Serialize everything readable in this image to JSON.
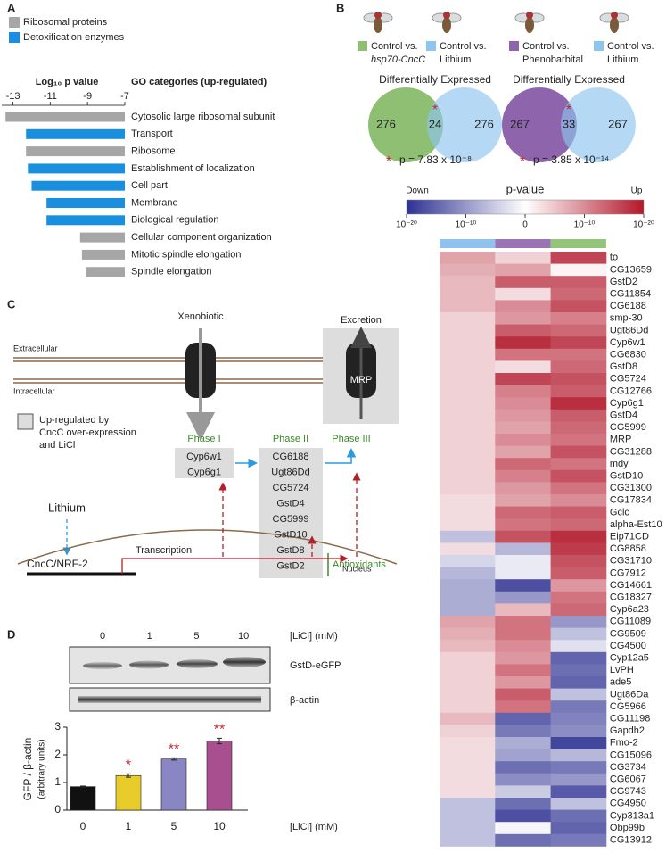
{
  "panel_labels": [
    "A",
    "B",
    "C",
    "D"
  ],
  "chart_data": [
    {
      "type": "hbar",
      "axis_title": "Log₁₀ p value",
      "category_title": "GO categories (up-regulated)",
      "categories": [
        "Cytosolic large ribosomal subunit",
        "Transport",
        "Ribosome",
        "Establishment of localization",
        "Cell part",
        "Membrane",
        "Biological regulation",
        "Cellular component organization",
        "Mitotic spindle elongation",
        "Spindle elongation"
      ],
      "series": [
        {
          "name": "Ribosomal proteins",
          "color": "#a6a6a6",
          "values": [
            -13.4,
            null,
            -12.3,
            null,
            null,
            null,
            null,
            -9.4,
            -9.3,
            -9.1
          ]
        },
        {
          "name": "Detoxification enzymes",
          "color": "#1a8fe0",
          "values": [
            null,
            -12.3,
            null,
            -12.2,
            -12.0,
            -11.2,
            -11.2,
            null,
            null,
            null
          ]
        }
      ],
      "xlim": [
        -13.6,
        -7
      ],
      "xticks": [
        -13,
        -11,
        -9,
        -7
      ]
    },
    {
      "type": "heatmap",
      "title": "p-value",
      "low_label": "Down",
      "high_label": "Up",
      "low_color": "#2e3192",
      "mid_color": "#ffffff",
      "high_color": "#b2182b",
      "column_colors": [
        "#8fc3ee",
        "#9b74b5",
        "#94c47a"
      ],
      "clim": [
        -20,
        20
      ],
      "cticks": [
        {
          "value": -20,
          "label": "10⁻²⁰"
        },
        {
          "value": -10,
          "label": "10⁻¹⁰"
        },
        0,
        {
          "value": 10,
          "label": "10⁻¹⁰"
        },
        {
          "value": 20,
          "label": "10⁻²⁰"
        }
      ],
      "rows": [
        "to",
        "CG13659",
        "GstD2",
        "CG11854",
        "CG6188",
        "smp-30",
        "Ugt86Dd",
        "Cyp6w1",
        "CG6830",
        "GstD8",
        "CG5724",
        "CG12766",
        "Cyp6g1",
        "GstD4",
        "CG5999",
        "MRP",
        "CG31288",
        "mdy",
        "GstD10",
        "CG31300",
        "CG17834",
        "Gclc",
        "alpha-Est10",
        "Eip71CD",
        "CG8858",
        "CG31710",
        "CG7912",
        "CG14661",
        "CG18327",
        "Cyp6a23",
        "CG11089",
        "CG9509",
        "CG4500",
        "Cyp12a5",
        "LvPH",
        "ade5",
        "Ugt86Da",
        "CG5966",
        "CG11198",
        "Gapdh2",
        "Fmo-2",
        "CG15096",
        "CG3734",
        "CG6067",
        "CG9743",
        "CG4950",
        "Cyp313a1",
        "Obp99b",
        "CG13912"
      ],
      "values": [
        [
          8,
          4,
          16
        ],
        [
          7,
          8,
          1
        ],
        [
          6,
          14,
          14
        ],
        [
          6,
          3,
          13
        ],
        [
          6,
          10,
          15
        ],
        [
          4,
          9,
          11
        ],
        [
          4,
          14,
          13
        ],
        [
          4,
          18,
          16
        ],
        [
          4,
          12,
          12
        ],
        [
          4,
          3,
          13
        ],
        [
          4,
          16,
          15
        ],
        [
          4,
          11,
          14
        ],
        [
          4,
          10,
          18
        ],
        [
          4,
          9,
          14
        ],
        [
          4,
          8,
          13
        ],
        [
          4,
          10,
          12
        ],
        [
          4,
          8,
          15
        ],
        [
          4,
          13,
          12
        ],
        [
          4,
          11,
          15
        ],
        [
          4,
          9,
          12
        ],
        [
          3,
          8,
          10
        ],
        [
          3,
          13,
          14
        ],
        [
          3,
          12,
          13
        ],
        [
          -6,
          15,
          18
        ],
        [
          3,
          -7,
          17
        ],
        [
          -4,
          -2,
          15
        ],
        [
          -7,
          -2,
          14
        ],
        [
          -8,
          -17,
          9
        ],
        [
          -8,
          -10,
          12
        ],
        [
          -8,
          6,
          13
        ],
        [
          8,
          12,
          -10
        ],
        [
          7,
          12,
          -6
        ],
        [
          6,
          10,
          -3
        ],
        [
          4,
          9,
          -15
        ],
        [
          4,
          12,
          -14
        ],
        [
          4,
          9,
          -15
        ],
        [
          4,
          14,
          -6
        ],
        [
          4,
          12,
          -13
        ],
        [
          6,
          -15,
          -12
        ],
        [
          4,
          -13,
          -11
        ],
        [
          3,
          -8,
          -18
        ],
        [
          3,
          -9,
          -7
        ],
        [
          3,
          -14,
          -13
        ],
        [
          3,
          -11,
          -10
        ],
        [
          3,
          -5,
          -16
        ],
        [
          -6,
          -14,
          -6
        ],
        [
          -6,
          -17,
          -14
        ],
        [
          -6,
          -1,
          -15
        ],
        [
          -6,
          -14,
          -13
        ]
      ]
    },
    {
      "type": "bar",
      "categories": [
        "0",
        "1",
        "5",
        "10"
      ],
      "values": [
        0.85,
        1.25,
        1.85,
        2.5
      ],
      "errors": [
        0.02,
        0.06,
        0.04,
        0.1
      ],
      "colors": [
        "#111111",
        "#e8cc2c",
        "#8a86c4",
        "#a8508f"
      ],
      "significance": [
        null,
        "*",
        "**",
        "**"
      ],
      "ylim": [
        0,
        3
      ],
      "yticks": [
        0,
        1,
        2,
        3
      ],
      "ylabel": "GFP / β-actin",
      "ylabel2": "(arbitrary units)",
      "xlabel": "[LiCl]  (mM)"
    }
  ],
  "venn": [
    {
      "labels": [
        {
          "text": "Control vs.",
          "subtext": "hsp70-CncC",
          "italic": true,
          "color": "#8fbf73"
        },
        {
          "text": "Control vs.",
          "subtext": "Lithium",
          "italic": false,
          "color": "#8ec4f0"
        }
      ],
      "title": "Differentially Expressed",
      "left": 276,
      "overlap": 24,
      "right": 276,
      "mark": "*",
      "p_text": "p = 7.83 x 10⁻⁸"
    },
    {
      "labels": [
        {
          "text": "Control vs.",
          "subtext": "Phenobarbital",
          "italic": false,
          "color": "#8e64ad"
        },
        {
          "text": "Control vs.",
          "subtext": "Lithium",
          "italic": false,
          "color": "#8ec4f0"
        }
      ],
      "title": "Differentially Expressed",
      "left": 267,
      "overlap": 33,
      "right": 267,
      "mark": "*",
      "p_text": "p = 3.85 x 10⁻¹⁴"
    }
  ],
  "diagram": {
    "xenobiotic": "Xenobiotic",
    "excretion": "Excretion",
    "transporter": "MRP",
    "extracellular": "Extracellular",
    "intracellular": "Intracellular",
    "legend": [
      "Up-regulated by",
      "CncC over-expression",
      "and LiCl"
    ],
    "phases": [
      {
        "title": "Phase I",
        "genes": [
          "Cyp6w1",
          "Cyp6g1"
        ]
      },
      {
        "title": "Phase II",
        "genes": [
          "CG6188",
          "Ugt86Dd",
          "CG5724",
          "GstD4",
          "CG5999",
          "GstD10",
          "GstD8",
          "GstD2"
        ]
      },
      {
        "title": "Phase III"
      }
    ],
    "antioxidants": "Antioxidants",
    "lithium": "Lithium",
    "factor": "CncC/NRF-2",
    "transcription": "Transcription",
    "nucleus": "Nucleus"
  },
  "blot": {
    "concentrations": [
      "0",
      "1",
      "5",
      "10"
    ],
    "unit_label": "[LiCl]  (mM)",
    "bands": [
      "GstD-eGFP",
      "β-actin"
    ]
  }
}
